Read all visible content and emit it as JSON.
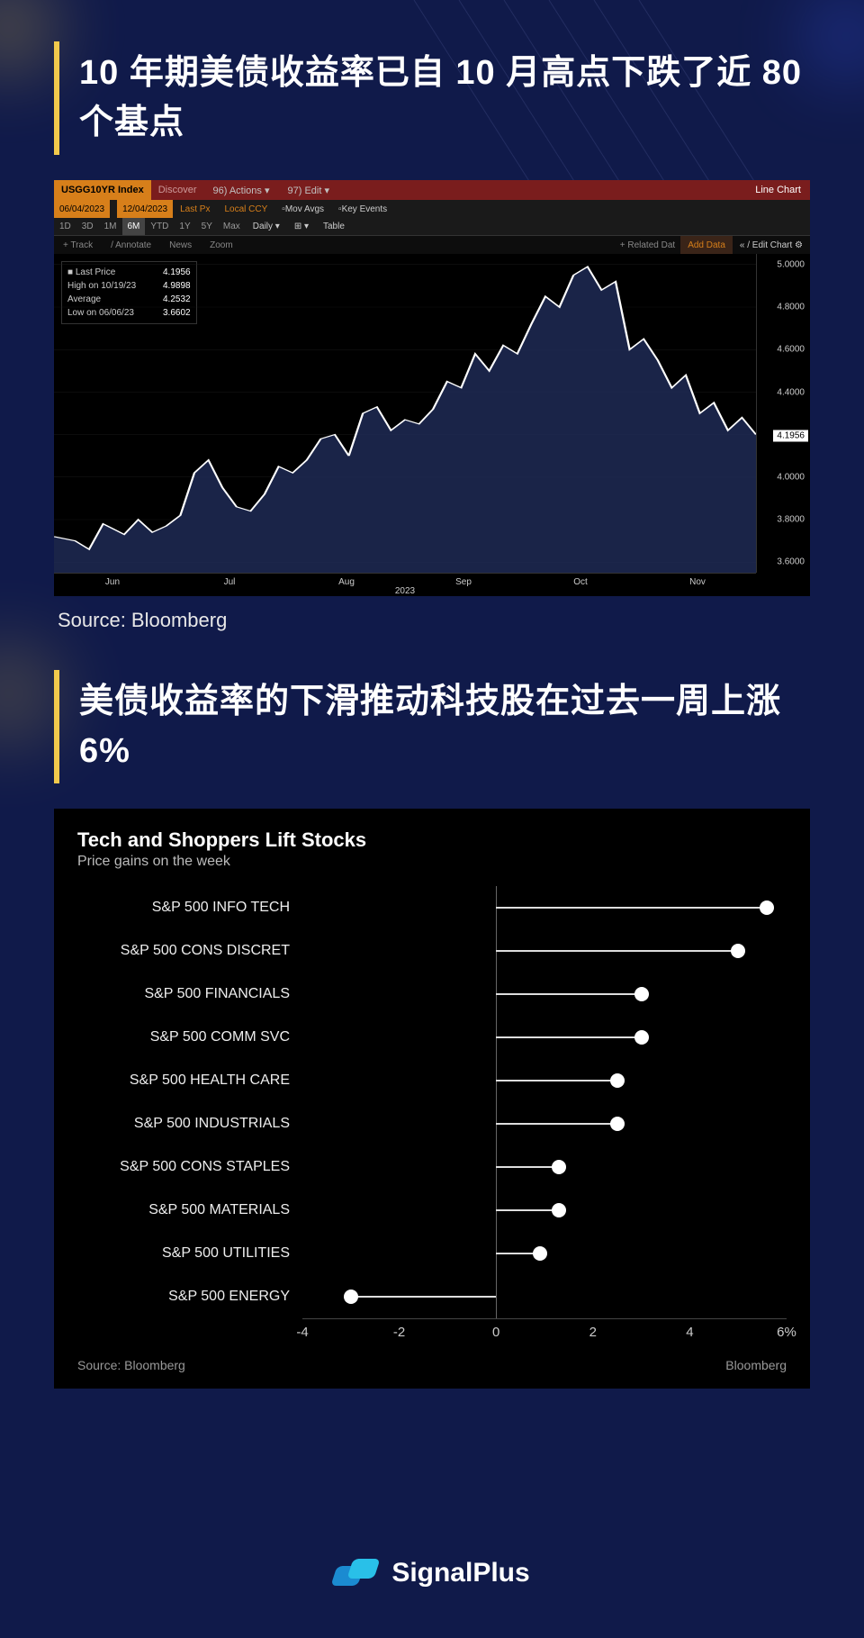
{
  "headline1": "10 年期美债收益率已自 10 月高点下跌了近 80 个基点",
  "source1": "Source: Bloomberg",
  "headline2": "美债收益率的下滑推动科技股在过去一周上涨 6%",
  "accent_color": "#f2c94c",
  "page_bg": "#101a4a",
  "terminal": {
    "ticker": "USGG10YR Index",
    "discover": "Discover",
    "actions": "96) Actions ▾",
    "edit": "97) Edit ▾",
    "line_chart": "Line Chart",
    "date_from": "06/04/2023",
    "date_to": "12/04/2023",
    "lastpx": "Last Px",
    "localccy": "Local CCY",
    "movavgs": "Mov Avgs",
    "keyevents": "Key Events",
    "range_buttons": [
      "1D",
      "3D",
      "1M",
      "6M",
      "YTD",
      "1Y",
      "5Y",
      "Max"
    ],
    "range_active": "6M",
    "daily": "Daily ▾",
    "table": "Table",
    "tools": [
      "+ Track",
      "/ Annotate",
      "News",
      "Zoom"
    ],
    "related": "+ Related Dat",
    "adddata": "Add Data",
    "editchart": "« / Edit Chart ⚙",
    "legend": {
      "last_price_label": "■ Last Price",
      "last_price": "4.1956",
      "high_label": "  High on 10/19/23",
      "high": "4.9898",
      "avg_label": "  Average",
      "avg": "4.2532",
      "low_label": "  Low on 06/06/23",
      "low": "3.6602"
    },
    "chart": {
      "type": "area",
      "ylim": [
        3.55,
        5.05
      ],
      "yticks": [
        3.6,
        3.8,
        4.0,
        4.2,
        4.4,
        4.6,
        4.8,
        5.0
      ],
      "current": 4.1956,
      "xlabels": [
        "Jun",
        "Jul",
        "Aug",
        "Sep",
        "Oct",
        "Nov"
      ],
      "xyear": "2023",
      "line_color": "#ffffff",
      "fill_color": "#1e2a55",
      "bg": "#000000",
      "grid_color": "#222222",
      "series": [
        [
          0.0,
          3.72
        ],
        [
          0.03,
          3.7
        ],
        [
          0.05,
          3.66
        ],
        [
          0.07,
          3.78
        ],
        [
          0.1,
          3.73
        ],
        [
          0.12,
          3.8
        ],
        [
          0.14,
          3.74
        ],
        [
          0.16,
          3.77
        ],
        [
          0.18,
          3.82
        ],
        [
          0.2,
          4.02
        ],
        [
          0.22,
          4.08
        ],
        [
          0.24,
          3.95
        ],
        [
          0.26,
          3.86
        ],
        [
          0.28,
          3.84
        ],
        [
          0.3,
          3.92
        ],
        [
          0.32,
          4.05
        ],
        [
          0.34,
          4.02
        ],
        [
          0.36,
          4.08
        ],
        [
          0.38,
          4.18
        ],
        [
          0.4,
          4.2
        ],
        [
          0.42,
          4.1
        ],
        [
          0.44,
          4.3
        ],
        [
          0.46,
          4.33
        ],
        [
          0.48,
          4.22
        ],
        [
          0.5,
          4.27
        ],
        [
          0.52,
          4.25
        ],
        [
          0.54,
          4.32
        ],
        [
          0.56,
          4.45
        ],
        [
          0.58,
          4.42
        ],
        [
          0.6,
          4.58
        ],
        [
          0.62,
          4.5
        ],
        [
          0.64,
          4.62
        ],
        [
          0.66,
          4.58
        ],
        [
          0.68,
          4.72
        ],
        [
          0.7,
          4.85
        ],
        [
          0.72,
          4.8
        ],
        [
          0.74,
          4.95
        ],
        [
          0.76,
          4.99
        ],
        [
          0.78,
          4.88
        ],
        [
          0.8,
          4.92
        ],
        [
          0.82,
          4.6
        ],
        [
          0.84,
          4.65
        ],
        [
          0.86,
          4.55
        ],
        [
          0.88,
          4.42
        ],
        [
          0.9,
          4.48
        ],
        [
          0.92,
          4.3
        ],
        [
          0.94,
          4.35
        ],
        [
          0.96,
          4.22
        ],
        [
          0.98,
          4.28
        ],
        [
          1.0,
          4.2
        ]
      ]
    }
  },
  "lollipop": {
    "title": "Tech and Shoppers Lift Stocks",
    "subtitle": "Price gains on the week",
    "type": "lollipop",
    "xlim": [
      -4,
      6
    ],
    "xticks": [
      -4,
      -2,
      0,
      2,
      4,
      6
    ],
    "xsuffix_last": "%",
    "bg": "#000000",
    "label_color": "#eeeeee",
    "label_fontsize": 16,
    "dot_color": "#ffffff",
    "stick_color": "#dddddd",
    "zero_line_color": "#666666",
    "rows": [
      {
        "label": "S&P 500 INFO TECH",
        "value": 5.6
      },
      {
        "label": "S&P 500 CONS DISCRET",
        "value": 5.0
      },
      {
        "label": "S&P 500 FINANCIALS",
        "value": 3.0
      },
      {
        "label": "S&P 500 COMM SVC",
        "value": 3.0
      },
      {
        "label": "S&P 500 HEALTH CARE",
        "value": 2.5
      },
      {
        "label": "S&P 500 INDUSTRIALS",
        "value": 2.5
      },
      {
        "label": "S&P 500 CONS STAPLES",
        "value": 1.3
      },
      {
        "label": "S&P 500 MATERIALS",
        "value": 1.3
      },
      {
        "label": "S&P 500 UTILITIES",
        "value": 0.9
      },
      {
        "label": "S&P 500 ENERGY",
        "value": -3.0
      }
    ],
    "source_left": "Source: Bloomberg",
    "source_right": "Bloomberg"
  },
  "brand": "SignalPlus"
}
